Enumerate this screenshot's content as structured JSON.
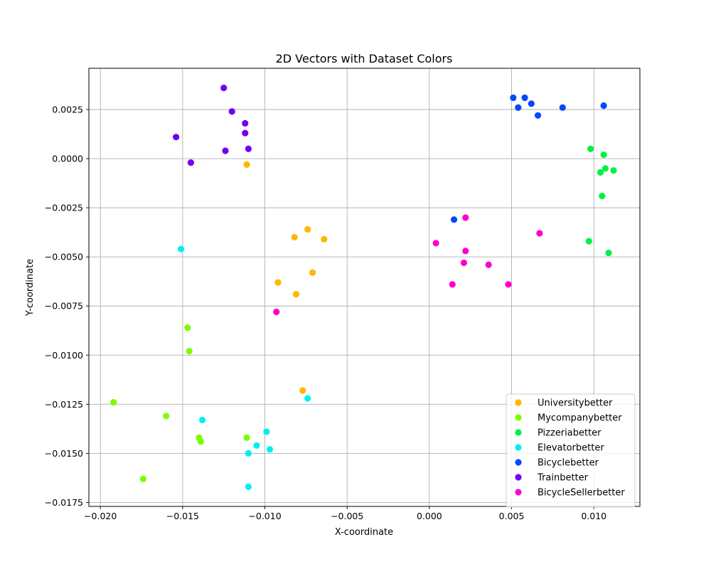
{
  "chart_data": {
    "type": "scatter",
    "title": "2D Vectors with Dataset Colors",
    "xlabel": "X-coordinate",
    "ylabel": "Y-coordinate",
    "xlim": [
      -0.0207,
      0.0128
    ],
    "ylim": [
      -0.0177,
      0.0046
    ],
    "xticks": [
      -0.02,
      -0.015,
      -0.01,
      -0.005,
      0.0,
      0.005,
      0.01
    ],
    "xtick_labels": [
      "−0.020",
      "−0.015",
      "−0.010",
      "−0.005",
      "0.000",
      "0.005",
      "0.010"
    ],
    "yticks": [
      0.0025,
      0.0,
      -0.0025,
      -0.005,
      -0.0075,
      -0.01,
      -0.0125,
      -0.015,
      -0.0175
    ],
    "ytick_labels": [
      "0.0025",
      "0.0000",
      "−0.0025",
      "−0.0050",
      "−0.0075",
      "−0.0100",
      "−0.0125",
      "−0.0150",
      "−0.0175"
    ],
    "grid": true,
    "legend_position": "bottom-right",
    "series": [
      {
        "name": "Universitybetter",
        "color": "#ffb700",
        "points": [
          [
            -0.0111,
            -0.0003
          ],
          [
            -0.0082,
            -0.004
          ],
          [
            -0.0074,
            -0.0036
          ],
          [
            -0.0064,
            -0.0041
          ],
          [
            -0.0071,
            -0.0058
          ],
          [
            -0.0092,
            -0.0063
          ],
          [
            -0.0081,
            -0.0069
          ],
          [
            -0.0093,
            -0.0078
          ],
          [
            -0.0077,
            -0.0118
          ]
        ]
      },
      {
        "name": "Mycompanybetter",
        "color": "#7cfc00",
        "points": [
          [
            -0.0147,
            -0.0086
          ],
          [
            -0.0146,
            -0.0098
          ],
          [
            -0.0192,
            -0.0124
          ],
          [
            -0.016,
            -0.0131
          ],
          [
            -0.014,
            -0.0142
          ],
          [
            -0.0139,
            -0.0144
          ],
          [
            -0.0111,
            -0.0142
          ],
          [
            -0.0174,
            -0.0163
          ]
        ]
      },
      {
        "name": "Pizzeriabetter",
        "color": "#00f244",
        "points": [
          [
            0.0098,
            0.0005
          ],
          [
            0.0106,
            0.0002
          ],
          [
            0.0107,
            -0.0005
          ],
          [
            0.0104,
            -0.0007
          ],
          [
            0.0112,
            -0.0006
          ],
          [
            0.0105,
            -0.0019
          ],
          [
            0.0097,
            -0.0042
          ],
          [
            0.0109,
            -0.0048
          ]
        ]
      },
      {
        "name": "Elevatorbetter",
        "color": "#00f0f0",
        "points": [
          [
            -0.0151,
            -0.0046
          ],
          [
            -0.0074,
            -0.0122
          ],
          [
            -0.0138,
            -0.0133
          ],
          [
            -0.0099,
            -0.0139
          ],
          [
            -0.0105,
            -0.0146
          ],
          [
            -0.011,
            -0.015
          ],
          [
            -0.0097,
            -0.0148
          ],
          [
            -0.011,
            -0.0167
          ]
        ]
      },
      {
        "name": "Bicyclebetter",
        "color": "#0047ff",
        "points": [
          [
            0.0051,
            0.0031
          ],
          [
            0.0058,
            0.0031
          ],
          [
            0.0054,
            0.0026
          ],
          [
            0.0062,
            0.0028
          ],
          [
            0.0066,
            0.0022
          ],
          [
            0.0081,
            0.0026
          ],
          [
            0.0106,
            0.0027
          ],
          [
            0.0015,
            -0.0031
          ]
        ]
      },
      {
        "name": "Trainbetter",
        "color": "#7200f2",
        "points": [
          [
            -0.0125,
            0.0036
          ],
          [
            -0.012,
            0.0024
          ],
          [
            -0.0112,
            0.0018
          ],
          [
            -0.0112,
            0.0013
          ],
          [
            -0.0154,
            0.0011
          ],
          [
            -0.0124,
            0.0004
          ],
          [
            -0.011,
            0.0005
          ],
          [
            -0.0145,
            -0.0002
          ]
        ]
      },
      {
        "name": "BicycleSellerbetter",
        "color": "#ff00cc",
        "points": [
          [
            0.0022,
            -0.003
          ],
          [
            0.0067,
            -0.0038
          ],
          [
            0.0004,
            -0.0043
          ],
          [
            0.0022,
            -0.0047
          ],
          [
            0.0021,
            -0.0053
          ],
          [
            0.0036,
            -0.0054
          ],
          [
            0.0014,
            -0.0064
          ],
          [
            0.0048,
            -0.0064
          ],
          [
            -0.0093,
            -0.0078
          ]
        ]
      }
    ]
  }
}
